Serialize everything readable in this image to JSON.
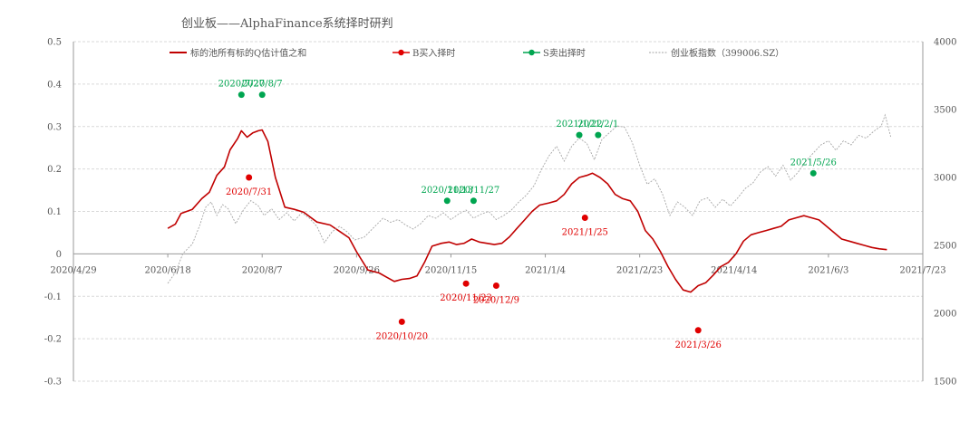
{
  "chart_data": {
    "type": "line",
    "title": "创业板——AlphaFinance系统择时研判",
    "xlabel": "",
    "ylabel": "",
    "x_ticks": [
      "2020/4/29",
      "2020/6/18",
      "2020/8/7",
      "2020/9/26",
      "2020/11/15",
      "2021/1/4",
      "2021/2/23",
      "2021/4/14",
      "2021/6/3",
      "2021/7/23"
    ],
    "xlim": [
      "2020/4/29",
      "2021/7/23"
    ],
    "y_left": {
      "ticks": [
        "0.5",
        "0.4",
        "0.3",
        "0.2",
        "0.1",
        "0",
        "-0.1",
        "-0.2",
        "-0.3"
      ],
      "lim": [
        -0.3,
        0.5
      ]
    },
    "y_right": {
      "ticks": [
        "4000",
        "3500",
        "3000",
        "2500",
        "2000",
        "1500"
      ],
      "lim": [
        1500,
        4000
      ]
    },
    "grid": true,
    "legend_position": "top",
    "colors": {
      "estimate": "#c00000",
      "buy": "#e00000",
      "sell": "#00a550",
      "index": "#a6a6a6",
      "grid": "#d9d9d9",
      "axis": "#999999"
    },
    "series": [
      {
        "name": "标的池所有标的Q估计值之和",
        "axis": "left",
        "points": [
          [
            "2020-06-18",
            0.06
          ],
          [
            "2020-06-22",
            0.07
          ],
          [
            "2020-06-25",
            0.095
          ],
          [
            "2020-07-01",
            0.105
          ],
          [
            "2020-07-06",
            0.13
          ],
          [
            "2020-07-10",
            0.145
          ],
          [
            "2020-07-14",
            0.185
          ],
          [
            "2020-07-18",
            0.205
          ],
          [
            "2020-07-21",
            0.245
          ],
          [
            "2020-07-25",
            0.272
          ],
          [
            "2020-07-27",
            0.29
          ],
          [
            "2020-07-30",
            0.275
          ],
          [
            "2020-08-02",
            0.285
          ],
          [
            "2020-08-05",
            0.29
          ],
          [
            "2020-08-07",
            0.292
          ],
          [
            "2020-08-10",
            0.265
          ],
          [
            "2020-08-14",
            0.18
          ],
          [
            "2020-08-19",
            0.11
          ],
          [
            "2020-08-24",
            0.105
          ],
          [
            "2020-08-29",
            0.098
          ],
          [
            "2020-09-05",
            0.075
          ],
          [
            "2020-09-12",
            0.068
          ],
          [
            "2020-09-18",
            0.05
          ],
          [
            "2020-09-22",
            0.038
          ],
          [
            "2020-09-26",
            0.005
          ],
          [
            "2020-10-02",
            -0.038
          ],
          [
            "2020-10-08",
            -0.045
          ],
          [
            "2020-10-12",
            -0.055
          ],
          [
            "2020-10-16",
            -0.065
          ],
          [
            "2020-10-20",
            -0.06
          ],
          [
            "2020-10-24",
            -0.058
          ],
          [
            "2020-10-28",
            -0.052
          ],
          [
            "2020-11-01",
            -0.02
          ],
          [
            "2020-11-05",
            0.018
          ],
          [
            "2020-11-10",
            0.025
          ],
          [
            "2020-11-14",
            0.028
          ],
          [
            "2020-11-18",
            0.022
          ],
          [
            "2020-11-22",
            0.025
          ],
          [
            "2020-11-26",
            0.035
          ],
          [
            "2020-11-30",
            0.028
          ],
          [
            "2020-12-04",
            0.025
          ],
          [
            "2020-12-08",
            0.022
          ],
          [
            "2020-12-12",
            0.025
          ],
          [
            "2020-12-16",
            0.04
          ],
          [
            "2020-12-20",
            0.06
          ],
          [
            "2020-12-24",
            0.08
          ],
          [
            "2020-12-28",
            0.1
          ],
          [
            "2021-01-01",
            0.115
          ],
          [
            "2021-01-06",
            0.12
          ],
          [
            "2021-01-10",
            0.125
          ],
          [
            "2021-01-14",
            0.14
          ],
          [
            "2021-01-18",
            0.165
          ],
          [
            "2021-01-22",
            0.18
          ],
          [
            "2021-01-26",
            0.185
          ],
          [
            "2021-01-29",
            0.19
          ],
          [
            "2021-02-02",
            0.18
          ],
          [
            "2021-02-06",
            0.165
          ],
          [
            "2021-02-10",
            0.14
          ],
          [
            "2021-02-14",
            0.13
          ],
          [
            "2021-02-18",
            0.125
          ],
          [
            "2021-02-22",
            0.1
          ],
          [
            "2021-02-26",
            0.055
          ],
          [
            "2021-03-02",
            0.035
          ],
          [
            "2021-03-06",
            0.005
          ],
          [
            "2021-03-10",
            -0.03
          ],
          [
            "2021-03-14",
            -0.06
          ],
          [
            "2021-03-18",
            -0.085
          ],
          [
            "2021-03-22",
            -0.09
          ],
          [
            "2021-03-26",
            -0.075
          ],
          [
            "2021-03-30",
            -0.068
          ],
          [
            "2021-04-03",
            -0.05
          ],
          [
            "2021-04-07",
            -0.03
          ],
          [
            "2021-04-11",
            -0.02
          ],
          [
            "2021-04-15",
            0.0
          ],
          [
            "2021-04-19",
            0.03
          ],
          [
            "2021-04-23",
            0.045
          ],
          [
            "2021-04-27",
            0.05
          ],
          [
            "2021-05-01",
            0.055
          ],
          [
            "2021-05-05",
            0.06
          ],
          [
            "2021-05-09",
            0.065
          ],
          [
            "2021-05-13",
            0.08
          ],
          [
            "2021-05-17",
            0.085
          ],
          [
            "2021-05-21",
            0.09
          ],
          [
            "2021-05-25",
            0.085
          ],
          [
            "2021-05-29",
            0.08
          ],
          [
            "2021-06-02",
            0.065
          ],
          [
            "2021-06-06",
            0.05
          ],
          [
            "2021-06-10",
            0.035
          ],
          [
            "2021-06-14",
            0.03
          ],
          [
            "2021-06-18",
            0.025
          ],
          [
            "2021-06-22",
            0.02
          ],
          [
            "2021-06-26",
            0.015
          ],
          [
            "2021-06-30",
            0.012
          ],
          [
            "2021-07-04",
            0.01
          ]
        ]
      },
      {
        "name": "创业板指数（399006.SZ）",
        "axis": "right",
        "points": [
          [
            "2020-06-18",
            2220
          ],
          [
            "2020-06-22",
            2300
          ],
          [
            "2020-06-26",
            2440
          ],
          [
            "2020-07-01",
            2510
          ],
          [
            "2020-07-05",
            2650
          ],
          [
            "2020-07-08",
            2780
          ],
          [
            "2020-07-11",
            2820
          ],
          [
            "2020-07-14",
            2720
          ],
          [
            "2020-07-17",
            2800
          ],
          [
            "2020-07-20",
            2770
          ],
          [
            "2020-07-24",
            2660
          ],
          [
            "2020-07-28",
            2760
          ],
          [
            "2020-08-01",
            2830
          ],
          [
            "2020-08-05",
            2790
          ],
          [
            "2020-08-08",
            2720
          ],
          [
            "2020-08-12",
            2770
          ],
          [
            "2020-08-16",
            2690
          ],
          [
            "2020-08-20",
            2740
          ],
          [
            "2020-08-24",
            2680
          ],
          [
            "2020-08-28",
            2740
          ],
          [
            "2020-09-01",
            2700
          ],
          [
            "2020-09-05",
            2640
          ],
          [
            "2020-09-09",
            2520
          ],
          [
            "2020-09-13",
            2600
          ],
          [
            "2020-09-17",
            2640
          ],
          [
            "2020-09-21",
            2600
          ],
          [
            "2020-09-25",
            2540
          ],
          [
            "2020-09-30",
            2560
          ],
          [
            "2020-10-05",
            2630
          ],
          [
            "2020-10-10",
            2700
          ],
          [
            "2020-10-14",
            2670
          ],
          [
            "2020-10-18",
            2690
          ],
          [
            "2020-10-22",
            2650
          ],
          [
            "2020-10-26",
            2620
          ],
          [
            "2020-10-30",
            2660
          ],
          [
            "2020-11-03",
            2720
          ],
          [
            "2020-11-07",
            2700
          ],
          [
            "2020-11-11",
            2740
          ],
          [
            "2020-11-15",
            2690
          ],
          [
            "2020-11-19",
            2730
          ],
          [
            "2020-11-23",
            2760
          ],
          [
            "2020-11-27",
            2700
          ],
          [
            "2020-12-01",
            2730
          ],
          [
            "2020-12-05",
            2750
          ],
          [
            "2020-12-09",
            2690
          ],
          [
            "2020-12-13",
            2720
          ],
          [
            "2020-12-17",
            2760
          ],
          [
            "2020-12-21",
            2820
          ],
          [
            "2020-12-25",
            2870
          ],
          [
            "2020-12-29",
            2940
          ],
          [
            "2021-01-02",
            3060
          ],
          [
            "2021-01-06",
            3160
          ],
          [
            "2021-01-10",
            3230
          ],
          [
            "2021-01-14",
            3120
          ],
          [
            "2021-01-18",
            3230
          ],
          [
            "2021-01-22",
            3290
          ],
          [
            "2021-01-26",
            3250
          ],
          [
            "2021-01-30",
            3130
          ],
          [
            "2021-02-03",
            3280
          ],
          [
            "2021-02-07",
            3330
          ],
          [
            "2021-02-11",
            3380
          ],
          [
            "2021-02-15",
            3370
          ],
          [
            "2021-02-19",
            3260
          ],
          [
            "2021-02-23",
            3090
          ],
          [
            "2021-02-27",
            2950
          ],
          [
            "2021-03-03",
            2990
          ],
          [
            "2021-03-07",
            2880
          ],
          [
            "2021-03-11",
            2720
          ],
          [
            "2021-03-15",
            2820
          ],
          [
            "2021-03-19",
            2780
          ],
          [
            "2021-03-23",
            2720
          ],
          [
            "2021-03-27",
            2830
          ],
          [
            "2021-03-31",
            2850
          ],
          [
            "2021-04-04",
            2780
          ],
          [
            "2021-04-08",
            2840
          ],
          [
            "2021-04-12",
            2790
          ],
          [
            "2021-04-16",
            2850
          ],
          [
            "2021-04-20",
            2920
          ],
          [
            "2021-04-24",
            2960
          ],
          [
            "2021-04-28",
            3040
          ],
          [
            "2021-05-02",
            3080
          ],
          [
            "2021-05-06",
            3010
          ],
          [
            "2021-05-10",
            3090
          ],
          [
            "2021-05-14",
            2980
          ],
          [
            "2021-05-18",
            3040
          ],
          [
            "2021-05-22",
            3120
          ],
          [
            "2021-05-26",
            3180
          ],
          [
            "2021-05-30",
            3240
          ],
          [
            "2021-06-03",
            3270
          ],
          [
            "2021-06-07",
            3200
          ],
          [
            "2021-06-11",
            3270
          ],
          [
            "2021-06-15",
            3240
          ],
          [
            "2021-06-19",
            3310
          ],
          [
            "2021-06-23",
            3290
          ],
          [
            "2021-06-27",
            3340
          ],
          [
            "2021-07-01",
            3380
          ],
          [
            "2021-07-03",
            3460
          ],
          [
            "2021-07-06",
            3300
          ]
        ]
      }
    ],
    "buy_signals": {
      "name": "B买入择时",
      "points": [
        {
          "date": "2020-07-31",
          "y": 0.18,
          "label": "2020/7/31"
        },
        {
          "date": "2020-10-20",
          "y": -0.16,
          "label": "2020/10/20"
        },
        {
          "date": "2020-11-23",
          "y": -0.07,
          "label": "2020/11/23"
        },
        {
          "date": "2020-12-09",
          "y": -0.075,
          "label": "2020/12/9"
        },
        {
          "date": "2021-01-25",
          "y": 0.085,
          "label": "2021/1/25"
        },
        {
          "date": "2021-03-26",
          "y": -0.18,
          "label": "2021/3/26"
        }
      ]
    },
    "sell_signals": {
      "name": "S卖出择时",
      "points": [
        {
          "date": "2020-07-27",
          "y": 0.375,
          "label": "2020/7/27"
        },
        {
          "date": "2020-08-07",
          "y": 0.375,
          "label": "2020/8/7"
        },
        {
          "date": "2020-11-13",
          "y": 0.125,
          "label": "2020/11/13"
        },
        {
          "date": "2020-11-27",
          "y": 0.125,
          "label": "2020/11/27"
        },
        {
          "date": "2021-01-22",
          "y": 0.28,
          "label": "2021/1/22"
        },
        {
          "date": "2021-02-01",
          "y": 0.28,
          "label": "2021/2/1"
        },
        {
          "date": "2021-05-26",
          "y": 0.19,
          "label": "2021/5/26"
        }
      ]
    }
  }
}
